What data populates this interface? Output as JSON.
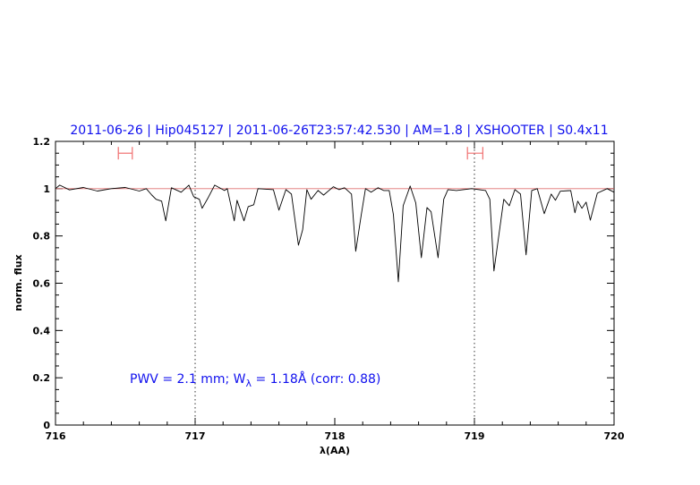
{
  "chart_data": {
    "type": "line",
    "title": "2011-06-26 | Hip045127 | 2011-06-26T23:57:42.530 | AM=1.8 | XSHOOTER | S0.4x11",
    "xlabel": "λ(AA)",
    "ylabel": "norm. flux",
    "xlim": [
      716,
      720
    ],
    "ylim": [
      0,
      1.2
    ],
    "xticks": [
      "716",
      "717",
      "718",
      "719",
      "720"
    ],
    "yticks": [
      "0",
      "0.2",
      "0.4",
      "0.6",
      "0.8",
      "1",
      "1.2"
    ],
    "grid": false,
    "reference_line": {
      "y": 1.0,
      "color": "#e07070"
    },
    "vertical_dotted_lines": [
      717,
      719
    ],
    "ranges": [
      {
        "x": [
          716.45,
          716.55
        ],
        "y": 1.15,
        "color": "#f07070"
      },
      {
        "x": [
          718.95,
          719.06
        ],
        "y": 1.15,
        "color": "#f07070"
      }
    ],
    "annotation": {
      "text_pre": "PWV = 2.1 mm; W",
      "subscript": "λ",
      "text_post": " = 1.18Å (corr: 0.88)"
    },
    "series": [
      {
        "color": "#000000",
        "x": [
          716.0,
          716.03,
          716.1,
          716.2,
          716.3,
          716.4,
          716.5,
          716.6,
          716.65,
          716.69,
          716.72,
          716.76,
          716.79,
          716.83,
          716.9,
          716.955,
          716.99,
          717.03,
          717.05,
          717.09,
          717.14,
          717.21,
          717.23,
          717.28,
          717.3,
          717.35,
          717.38,
          717.42,
          717.45,
          717.56,
          717.6,
          717.65,
          717.69,
          717.74,
          717.77,
          717.8,
          717.83,
          717.88,
          717.92,
          717.99,
          718.03,
          718.07,
          718.12,
          718.15,
          718.19,
          718.22,
          718.26,
          718.31,
          718.35,
          718.39,
          718.42,
          718.455,
          718.49,
          718.54,
          718.58,
          718.62,
          718.66,
          718.69,
          718.74,
          718.78,
          718.81,
          718.87,
          718.98,
          719.08,
          719.11,
          719.14,
          719.21,
          719.25,
          719.29,
          719.33,
          719.37,
          719.41,
          719.45,
          719.5,
          719.55,
          719.58,
          719.615,
          719.69,
          719.72,
          719.74,
          719.77,
          719.8,
          719.83,
          719.88,
          719.95,
          720.0
        ],
        "y": [
          1.0,
          1.015,
          0.995,
          1.005,
          0.99,
          1.0,
          1.005,
          0.99,
          1.0,
          0.973,
          0.955,
          0.947,
          0.864,
          1.004,
          0.985,
          1.015,
          0.966,
          0.955,
          0.917,
          0.958,
          1.015,
          0.992,
          1.0,
          0.864,
          0.951,
          0.864,
          0.924,
          0.932,
          1.0,
          0.996,
          0.909,
          0.996,
          0.977,
          0.761,
          0.826,
          0.996,
          0.955,
          0.992,
          0.973,
          1.008,
          0.996,
          1.004,
          0.977,
          0.735,
          0.89,
          1.0,
          0.985,
          1.004,
          0.992,
          0.992,
          0.89,
          0.606,
          0.928,
          1.011,
          0.939,
          0.708,
          0.92,
          0.902,
          0.708,
          0.955,
          0.996,
          0.992,
          1.0,
          0.992,
          0.955,
          0.652,
          0.955,
          0.928,
          0.996,
          0.977,
          0.72,
          0.992,
          1.0,
          0.894,
          0.977,
          0.951,
          0.989,
          0.992,
          0.898,
          0.947,
          0.917,
          0.943,
          0.867,
          0.981,
          1.0,
          0.985
        ]
      }
    ]
  }
}
